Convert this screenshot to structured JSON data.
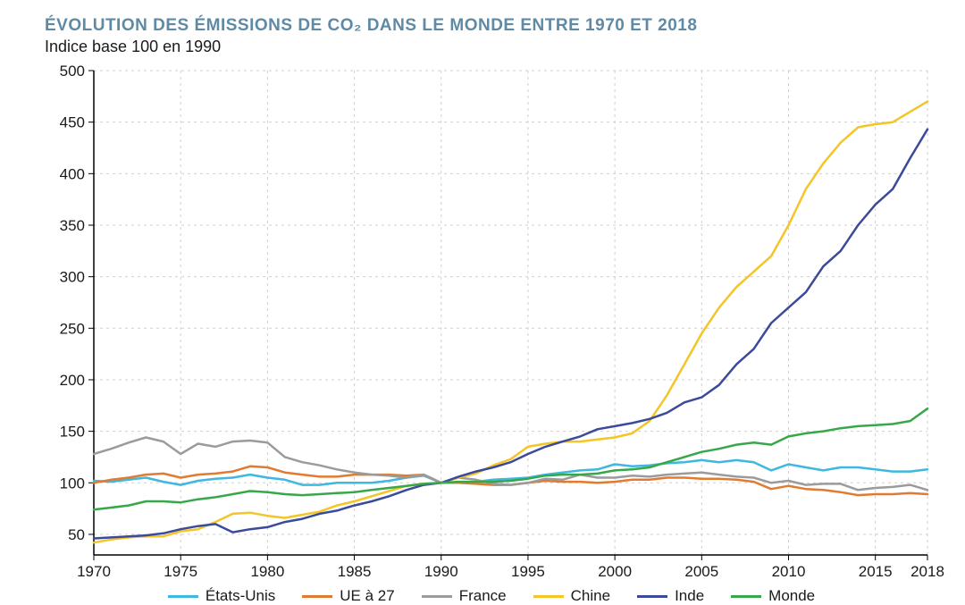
{
  "title": "ÉVOLUTION DES ÉMISSIONS DE CO₂ DANS LE MONDE ENTRE 1970 ET 2018",
  "subtitle": "Indice base 100 en 1990",
  "chart": {
    "type": "line",
    "background_color": "#ffffff",
    "grid_color": "#cfcfcf",
    "axis_color": "#000000",
    "line_width": 2.5,
    "x": {
      "min": 1970,
      "max": 2018,
      "ticks": [
        1970,
        1975,
        1980,
        1985,
        1990,
        1995,
        2000,
        2005,
        2010,
        2015,
        2018
      ],
      "label_fontsize": 17
    },
    "y": {
      "min": 30,
      "max": 500,
      "ticks": [
        50,
        100,
        150,
        200,
        250,
        300,
        350,
        400,
        450,
        500
      ],
      "label_fontsize": 17
    },
    "years": [
      1970,
      1971,
      1972,
      1973,
      1974,
      1975,
      1976,
      1977,
      1978,
      1979,
      1980,
      1981,
      1982,
      1983,
      1984,
      1985,
      1986,
      1987,
      1988,
      1989,
      1990,
      1991,
      1992,
      1993,
      1994,
      1995,
      1996,
      1997,
      1998,
      1999,
      2000,
      2001,
      2002,
      2003,
      2004,
      2005,
      2006,
      2007,
      2008,
      2009,
      2010,
      2011,
      2012,
      2013,
      2014,
      2015,
      2016,
      2017,
      2018
    ],
    "series": [
      {
        "name": "États-Unis",
        "color": "#3fb7df",
        "values": [
          102,
          101,
          103,
          105,
          101,
          98,
          102,
          104,
          105,
          108,
          105,
          103,
          98,
          98,
          100,
          100,
          100,
          102,
          105,
          107,
          100,
          100,
          101,
          103,
          104,
          105,
          108,
          110,
          112,
          113,
          118,
          116,
          117,
          119,
          120,
          122,
          120,
          122,
          120,
          112,
          118,
          115,
          112,
          115,
          115,
          113,
          111,
          111,
          113
        ]
      },
      {
        "name": "UE à 27",
        "color": "#e17b2f",
        "values": [
          100,
          103,
          105,
          108,
          109,
          105,
          108,
          109,
          111,
          116,
          115,
          110,
          108,
          106,
          106,
          108,
          108,
          108,
          107,
          108,
          100,
          100,
          99,
          98,
          98,
          100,
          102,
          101,
          101,
          100,
          101,
          103,
          103,
          105,
          105,
          104,
          104,
          103,
          101,
          94,
          97,
          94,
          93,
          91,
          88,
          89,
          89,
          90,
          89
        ]
      },
      {
        "name": "France",
        "color": "#9b9b9b",
        "values": [
          128,
          133,
          139,
          144,
          140,
          128,
          138,
          135,
          140,
          141,
          139,
          125,
          120,
          117,
          113,
          110,
          108,
          107,
          105,
          108,
          100,
          105,
          103,
          99,
          98,
          100,
          104,
          103,
          108,
          105,
          105,
          107,
          106,
          108,
          109,
          110,
          108,
          106,
          105,
          100,
          102,
          98,
          99,
          99,
          93,
          95,
          96,
          98,
          93
        ]
      },
      {
        "name": "Chine",
        "color": "#f4c527",
        "values": [
          42,
          45,
          47,
          48,
          48,
          53,
          55,
          62,
          70,
          71,
          68,
          66,
          69,
          72,
          78,
          82,
          87,
          92,
          97,
          99,
          100,
          105,
          109,
          117,
          123,
          135,
          138,
          140,
          140,
          142,
          144,
          148,
          160,
          185,
          215,
          245,
          270,
          290,
          305,
          320,
          350,
          385,
          410,
          430,
          445,
          448,
          450,
          460,
          470
        ]
      },
      {
        "name": "Inde",
        "color": "#3b4a9b",
        "values": [
          46,
          47,
          48,
          49,
          51,
          55,
          58,
          60,
          52,
          55,
          57,
          62,
          65,
          70,
          73,
          78,
          82,
          87,
          93,
          98,
          100,
          106,
          111,
          115,
          120,
          128,
          135,
          140,
          145,
          152,
          155,
          158,
          162,
          168,
          178,
          183,
          195,
          215,
          230,
          255,
          270,
          285,
          310,
          325,
          350,
          370,
          385,
          415,
          443
        ]
      },
      {
        "name": "Monde",
        "color": "#37a84a",
        "values": [
          74,
          76,
          78,
          82,
          82,
          81,
          84,
          86,
          89,
          92,
          91,
          89,
          88,
          89,
          90,
          91,
          93,
          95,
          97,
          99,
          100,
          101,
          101,
          101,
          102,
          104,
          107,
          108,
          108,
          109,
          112,
          113,
          115,
          120,
          125,
          130,
          133,
          137,
          139,
          137,
          145,
          148,
          150,
          153,
          155,
          156,
          157,
          160,
          172
        ]
      }
    ],
    "legend": {
      "items": [
        "États-Unis",
        "UE à 27",
        "France",
        "Chine",
        "Inde",
        "Monde"
      ],
      "fontsize": 17
    }
  }
}
